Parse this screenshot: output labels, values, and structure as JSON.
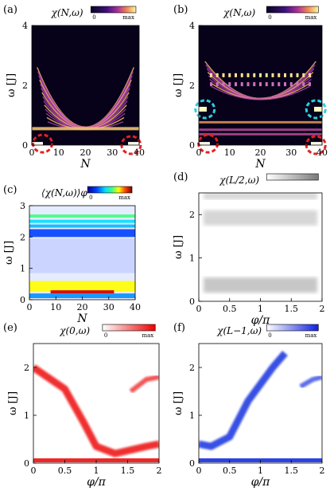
{
  "chart_data": [
    {
      "panel": "(a)",
      "type": "heatmap",
      "title": "χ(N,ω)",
      "xlabel": "N",
      "ylabel": "ω [J]",
      "xlim": [
        0,
        40
      ],
      "ylim": [
        0,
        4
      ],
      "xticks": [
        "0",
        "10",
        "20",
        "30",
        "40"
      ],
      "yticks": [
        "0",
        "2",
        "4"
      ],
      "colorbar": {
        "min_label": "0",
        "max_label": "max",
        "scheme": "dark-purple-to-yellow"
      },
      "features": {
        "bulk_band_omega": [
          0.5,
          2.6
        ],
        "edge_modes_omega": 0,
        "edge_mode_sites": [
          0,
          40
        ]
      },
      "markers": [
        {
          "x": 4,
          "y": 0.05,
          "color": "#e52020"
        },
        {
          "x": 37,
          "y": 0.0,
          "color": "#e52020"
        }
      ]
    },
    {
      "panel": "(b)",
      "type": "heatmap",
      "title": "χ(N,ω)",
      "xlabel": "N",
      "ylabel": "ω [J]",
      "xlim": [
        0,
        40
      ],
      "ylim": [
        0,
        4
      ],
      "xticks": [
        "0",
        "10",
        "20",
        "30",
        "40"
      ],
      "yticks": [
        "0",
        "2",
        "4"
      ],
      "colorbar": {
        "min_label": "0",
        "max_label": "max",
        "scheme": "dark-purple-to-yellow"
      },
      "features": {
        "bands_omega": [
          [
            0.3,
            0.8
          ],
          [
            1.5,
            2.8
          ]
        ],
        "edge_modes_omega": [
          0,
          1.2
        ],
        "edge_mode_sites": [
          0,
          40
        ]
      },
      "markers": [
        {
          "x": 2,
          "y": 1.2,
          "color": "#2ad0e0"
        },
        {
          "x": 38,
          "y": 1.2,
          "color": "#2ad0e0"
        },
        {
          "x": 3,
          "y": 0.05,
          "color": "#e52020"
        },
        {
          "x": 38,
          "y": 0.0,
          "color": "#e52020"
        }
      ]
    },
    {
      "panel": "(c)",
      "type": "heatmap",
      "title": "⟨χ(N,ω)⟩φ",
      "xlabel": "N",
      "ylabel": "ω [J]",
      "xlim": [
        0,
        40
      ],
      "ylim": [
        0,
        3
      ],
      "xticks": [
        "0",
        "10",
        "20",
        "30",
        "40"
      ],
      "yticks": [
        "0",
        "1",
        "2",
        "3"
      ],
      "colorbar": {
        "min_label": "0",
        "max_label": "max",
        "scheme": "jet"
      },
      "bands": [
        {
          "omega_range": [
            2.62,
            2.72
          ],
          "level": 0.55
        },
        {
          "omega_range": [
            2.45,
            2.55
          ],
          "level": 0.4
        },
        {
          "omega_range": [
            2.3,
            2.4
          ],
          "level": 0.35
        },
        {
          "omega_range": [
            2.0,
            2.25
          ],
          "level": 0.2
        },
        {
          "omega_range": [
            0.85,
            1.95
          ],
          "level": 0.05
        },
        {
          "omega_range": [
            0.25,
            0.6
          ],
          "level": 0.7
        },
        {
          "omega_range": [
            0.05,
            0.2
          ],
          "level": 0.3
        }
      ],
      "peak_line": {
        "omega": 0.25,
        "x_range": [
          8,
          32
        ],
        "level": 1.0
      }
    },
    {
      "panel": "(d)",
      "type": "heatmap",
      "title": "χ(L/2,ω)",
      "xlabel": "φ/π",
      "ylabel": "ω [J]",
      "xlim": [
        0,
        2
      ],
      "ylim": [
        0,
        2.5
      ],
      "xticks": [
        "0",
        "0.5",
        "1",
        "1.5",
        "2"
      ],
      "yticks": [
        "0",
        "1",
        "2"
      ],
      "colorbar": {
        "min_label": "",
        "max_label": "",
        "scheme": "white-to-gray"
      },
      "bands_omega": [
        [
          0.2,
          0.55
        ],
        [
          1.75,
          2.1
        ],
        [
          2.35,
          2.5
        ]
      ]
    },
    {
      "panel": "(e)",
      "type": "heatmap",
      "title": "χ(0,ω)",
      "xlabel": "φ/π",
      "ylabel": "ω [J]",
      "xlim": [
        0,
        2
      ],
      "ylim": [
        0,
        2.5
      ],
      "xticks": [
        "0",
        "0.5",
        "1",
        "1.5",
        "2"
      ],
      "yticks": [
        "0",
        "1",
        "2"
      ],
      "colorbar": {
        "min_label": "0",
        "max_label": "max",
        "scheme": "white-to-red"
      },
      "color": "#ee1010",
      "branch": [
        [
          0,
          2.0
        ],
        [
          0.5,
          1.55
        ],
        [
          0.8,
          0.85
        ],
        [
          1.0,
          0.35
        ],
        [
          1.3,
          0.2
        ],
        [
          1.8,
          0.35
        ],
        [
          2.0,
          0.4
        ]
      ],
      "branch2": [
        [
          1.55,
          1.5
        ],
        [
          1.8,
          1.75
        ],
        [
          2.0,
          1.8
        ]
      ],
      "flat_band_omega": 0.05
    },
    {
      "panel": "(f)",
      "type": "heatmap",
      "title": "χ(L−1,ω)",
      "xlabel": "φ/π",
      "ylabel": "ω [J]",
      "xlim": [
        0,
        2
      ],
      "ylim": [
        0,
        2.5
      ],
      "xticks": [
        "0",
        "0.5",
        "1",
        "1.5",
        "2"
      ],
      "yticks": [
        "0",
        "1",
        "2"
      ],
      "colorbar": {
        "min_label": "0",
        "max_label": "max",
        "scheme": "white-to-blue"
      },
      "color": "#1530e0",
      "branch": [
        [
          0,
          0.4
        ],
        [
          0.2,
          0.35
        ],
        [
          0.5,
          0.55
        ],
        [
          0.8,
          1.3
        ],
        [
          1.0,
          1.65
        ],
        [
          1.2,
          2.0
        ],
        [
          1.4,
          2.3
        ]
      ],
      "branch2": [
        [
          1.65,
          1.6
        ],
        [
          1.85,
          1.75
        ],
        [
          2.0,
          1.8
        ]
      ],
      "flat_band_omega": 0.05
    }
  ]
}
